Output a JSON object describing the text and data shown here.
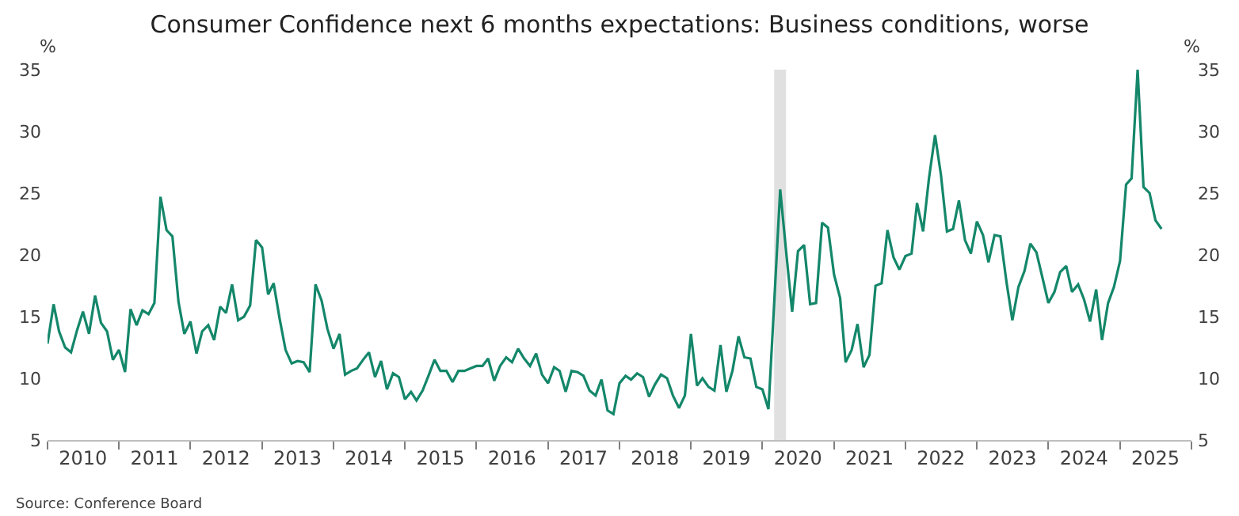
{
  "chart_data": {
    "type": "line",
    "title": "Consumer Confidence next 6 months expectations: Business conditions, worse",
    "ylabel": "%",
    "y2label": "%",
    "x": [
      "2010-01",
      "2010-02",
      "2010-03",
      "2010-04",
      "2010-05",
      "2010-06",
      "2010-07",
      "2010-08",
      "2010-09",
      "2010-10",
      "2010-11",
      "2010-12",
      "2011-01",
      "2011-02",
      "2011-03",
      "2011-04",
      "2011-05",
      "2011-06",
      "2011-07",
      "2011-08",
      "2011-09",
      "2011-10",
      "2011-11",
      "2011-12",
      "2012-01",
      "2012-02",
      "2012-03",
      "2012-04",
      "2012-05",
      "2012-06",
      "2012-07",
      "2012-08",
      "2012-09",
      "2012-10",
      "2012-11",
      "2012-12",
      "2013-01",
      "2013-02",
      "2013-03",
      "2013-04",
      "2013-05",
      "2013-06",
      "2013-07",
      "2013-08",
      "2013-09",
      "2013-10",
      "2013-11",
      "2013-12",
      "2014-01",
      "2014-02",
      "2014-03",
      "2014-04",
      "2014-05",
      "2014-06",
      "2014-07",
      "2014-08",
      "2014-09",
      "2014-10",
      "2014-11",
      "2014-12",
      "2015-01",
      "2015-02",
      "2015-03",
      "2015-04",
      "2015-05",
      "2015-06",
      "2015-07",
      "2015-08",
      "2015-09",
      "2015-10",
      "2015-11",
      "2015-12",
      "2016-01",
      "2016-02",
      "2016-03",
      "2016-04",
      "2016-05",
      "2016-06",
      "2016-07",
      "2016-08",
      "2016-09",
      "2016-10",
      "2016-11",
      "2016-12",
      "2017-01",
      "2017-02",
      "2017-03",
      "2017-04",
      "2017-05",
      "2017-06",
      "2017-07",
      "2017-08",
      "2017-09",
      "2017-10",
      "2017-11",
      "2017-12",
      "2018-01",
      "2018-02",
      "2018-03",
      "2018-04",
      "2018-05",
      "2018-06",
      "2018-07",
      "2018-08",
      "2018-09",
      "2018-10",
      "2018-11",
      "2018-12",
      "2019-01",
      "2019-02",
      "2019-03",
      "2019-04",
      "2019-05",
      "2019-06",
      "2019-07",
      "2019-08",
      "2019-09",
      "2019-10",
      "2019-11",
      "2019-12",
      "2020-01",
      "2020-02",
      "2020-03",
      "2020-04",
      "2020-05",
      "2020-06",
      "2020-07",
      "2020-08",
      "2020-09",
      "2020-10",
      "2020-11",
      "2020-12",
      "2021-01",
      "2021-02",
      "2021-03",
      "2021-04",
      "2021-05",
      "2021-06",
      "2021-07",
      "2021-08",
      "2021-09",
      "2021-10",
      "2021-11",
      "2021-12",
      "2022-01",
      "2022-02",
      "2022-03",
      "2022-04",
      "2022-05",
      "2022-06",
      "2022-07",
      "2022-08",
      "2022-09",
      "2022-10",
      "2022-11",
      "2022-12",
      "2023-01",
      "2023-02",
      "2023-03",
      "2023-04",
      "2023-05",
      "2023-06",
      "2023-07",
      "2023-08",
      "2023-09",
      "2023-10",
      "2023-11",
      "2023-12",
      "2024-01",
      "2024-02",
      "2024-03",
      "2024-04",
      "2024-05",
      "2024-06",
      "2024-07",
      "2024-08",
      "2024-09",
      "2024-10",
      "2024-11",
      "2024-12",
      "2025-01",
      "2025-02",
      "2025-03",
      "2025-04",
      "2025-05",
      "2025-06",
      "2025-07",
      "2025-08"
    ],
    "series": [
      {
        "color": "#14876a",
        "values": [
          12.8,
          16.0,
          13.8,
          12.5,
          12.1,
          13.9,
          15.4,
          13.6,
          16.7,
          14.5,
          13.8,
          11.5,
          12.3,
          10.5,
          15.6,
          14.3,
          15.5,
          15.2,
          16.1,
          24.7,
          22.0,
          21.5,
          16.2,
          13.6,
          14.6,
          12.0,
          13.8,
          14.3,
          13.1,
          15.8,
          15.3,
          17.6,
          14.7,
          15.0,
          15.9,
          21.2,
          20.6,
          16.8,
          17.7,
          14.8,
          12.3,
          11.2,
          11.4,
          11.3,
          10.5,
          17.6,
          16.3,
          14.0,
          12.4,
          13.6,
          10.3,
          10.6,
          10.8,
          11.5,
          12.1,
          10.1,
          11.4,
          9.1,
          10.4,
          10.1,
          8.3,
          8.9,
          8.2,
          9.0,
          10.2,
          11.5,
          10.6,
          10.6,
          9.7,
          10.6,
          10.6,
          10.8,
          11.0,
          11.0,
          11.6,
          9.8,
          11.0,
          11.7,
          11.3,
          12.4,
          11.6,
          11.0,
          12.0,
          10.3,
          9.6,
          10.9,
          10.6,
          8.9,
          10.6,
          10.5,
          10.2,
          9.0,
          8.6,
          9.9,
          7.4,
          7.1,
          9.6,
          10.2,
          9.9,
          10.4,
          10.1,
          8.5,
          9.5,
          10.3,
          10.0,
          8.6,
          7.6,
          8.6,
          13.6,
          9.4,
          10.0,
          9.3,
          9.0,
          12.7,
          8.9,
          10.6,
          13.4,
          11.7,
          11.6,
          9.3,
          9.1,
          7.5,
          16.0,
          25.3,
          20.3,
          15.4,
          20.3,
          20.8,
          16.0,
          16.1,
          22.6,
          22.2,
          18.4,
          16.5,
          11.3,
          12.3,
          14.4,
          10.9,
          11.9,
          17.5,
          17.7,
          22.0,
          19.8,
          18.8,
          19.9,
          20.1,
          24.2,
          21.9,
          26.2,
          29.7,
          26.5,
          21.9,
          22.1,
          24.4,
          21.2,
          20.1,
          22.7,
          21.6,
          19.4,
          21.6,
          21.5,
          17.8,
          14.7,
          17.4,
          18.7,
          20.9,
          20.2,
          18.2,
          16.1,
          17.0,
          18.6,
          19.1,
          17.0,
          17.6,
          16.4,
          14.6,
          17.2,
          13.1,
          16.1,
          17.4,
          19.5,
          25.7,
          26.2,
          35.0,
          25.5,
          25.0,
          22.8,
          22.1
        ]
      }
    ],
    "xlim": [
      "2010-01-01",
      "2026-01-01"
    ],
    "xticks": [
      {
        "value": "2010-07-01",
        "label": "2010"
      },
      {
        "value": "2011-07-01",
        "label": "2011"
      },
      {
        "value": "2012-07-01",
        "label": "2012"
      },
      {
        "value": "2013-07-01",
        "label": "2013"
      },
      {
        "value": "2014-07-01",
        "label": "2014"
      },
      {
        "value": "2015-07-01",
        "label": "2015"
      },
      {
        "value": "2016-07-01",
        "label": "2016"
      },
      {
        "value": "2017-07-01",
        "label": "2017"
      },
      {
        "value": "2018-07-01",
        "label": "2018"
      },
      {
        "value": "2019-07-01",
        "label": "2019"
      },
      {
        "value": "2020-07-01",
        "label": "2020"
      },
      {
        "value": "2021-07-01",
        "label": "2021"
      },
      {
        "value": "2022-07-01",
        "label": "2022"
      },
      {
        "value": "2023-07-01",
        "label": "2023"
      },
      {
        "value": "2024-07-01",
        "label": "2024"
      },
      {
        "value": "2025-07-01",
        "label": "2025"
      },
      {
        "value": "2010-01-01",
        "label": null
      },
      {
        "value": "2011-01-01",
        "label": null
      },
      {
        "value": "2012-01-01",
        "label": null
      },
      {
        "value": "2013-01-01",
        "label": null
      },
      {
        "value": "2014-01-01",
        "label": null
      },
      {
        "value": "2015-01-01",
        "label": null
      },
      {
        "value": "2016-01-01",
        "label": null
      },
      {
        "value": "2017-01-01",
        "label": null
      },
      {
        "value": "2018-01-01",
        "label": null
      },
      {
        "value": "2019-01-01",
        "label": null
      },
      {
        "value": "2020-01-01",
        "label": null
      },
      {
        "value": "2021-01-01",
        "label": null
      },
      {
        "value": "2022-01-01",
        "label": null
      },
      {
        "value": "2023-01-01",
        "label": null
      },
      {
        "value": "2024-01-01",
        "label": null
      },
      {
        "value": "2025-01-01",
        "label": null
      },
      {
        "value": "2026-01-01",
        "label": null
      }
    ],
    "ylim": [
      5,
      35
    ],
    "yticks": [
      5,
      10,
      15,
      20,
      25,
      30,
      35
    ],
    "y2lim": [
      5,
      35
    ],
    "y2ticks": [
      5,
      10,
      15,
      20,
      25,
      30,
      35
    ],
    "bands": [
      {
        "axis": "x",
        "from": "2020-03-01",
        "to": "2020-05-01",
        "color": "#e0e0e0"
      }
    ],
    "grid": false,
    "annotations": [
      "Source: Conference Board"
    ]
  }
}
